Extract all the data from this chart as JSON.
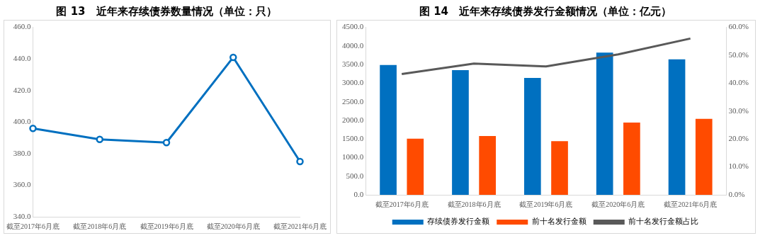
{
  "chart_data": [
    {
      "type": "line",
      "title": "图 13　近年来存续债券数量情况（单位：只）",
      "categories": [
        "截至2017年6月底",
        "截至2018年6月底",
        "截至2019年6月底",
        "截至2020年6月底",
        "截至2021年6月底"
      ],
      "series": [
        {
          "color": "#0070c0",
          "values": [
            396,
            389,
            387,
            441,
            375
          ]
        }
      ],
      "ylim": [
        340,
        460
      ],
      "yticks": [
        {
          "value": 340,
          "label": "340.0"
        },
        {
          "value": 360,
          "label": "360.0"
        },
        {
          "value": 380,
          "label": "380.0"
        },
        {
          "value": 400,
          "label": "400.0"
        },
        {
          "value": 420,
          "label": "420.0"
        },
        {
          "value": 440,
          "label": "440.0"
        },
        {
          "value": 460,
          "label": "460.0"
        }
      ],
      "grid": false,
      "legend": false,
      "marker": "circle"
    },
    {
      "type": "bar",
      "title": "图 14　近年来存续债券发行金额情况（单位：亿元）",
      "categories": [
        "截至2017年6月底",
        "截至2018年6月底",
        "截至2019年6月底",
        "截至2020年6月底",
        "截至2021年6月底"
      ],
      "series": [
        {
          "name": "存续债券发行金额",
          "color": "#0070c0",
          "values": [
            3490,
            3350,
            3140,
            3820,
            3640
          ]
        },
        {
          "name": "前十名发行金额",
          "color": "#ff4b00",
          "values": [
            1510,
            1580,
            1440,
            1940,
            2040
          ]
        },
        {
          "name": "前十名发行金额占比",
          "type": "line",
          "axis": "y2",
          "color": "#595959",
          "values": [
            43.3,
            47.0,
            46.0,
            50.3,
            56.0
          ]
        }
      ],
      "ylim": [
        0,
        4500
      ],
      "yticks": [
        {
          "value": 0,
          "label": "0.0"
        },
        {
          "value": 500,
          "label": "500.0"
        },
        {
          "value": 1000,
          "label": "1000.0"
        },
        {
          "value": 1500,
          "label": "1500.0"
        },
        {
          "value": 2000,
          "label": "2000.0"
        },
        {
          "value": 2500,
          "label": "2500.0"
        },
        {
          "value": 3000,
          "label": "3000.0"
        },
        {
          "value": 3500,
          "label": "3500.0"
        },
        {
          "value": 4000,
          "label": "4000.0"
        },
        {
          "value": 4500,
          "label": "4500.0"
        }
      ],
      "y2lim": [
        0,
        60
      ],
      "y2ticks": [
        {
          "value": 0,
          "label": "0.0%"
        },
        {
          "value": 10,
          "label": "10.0%"
        },
        {
          "value": 20,
          "label": "20.0%"
        },
        {
          "value": 30,
          "label": "30.0%"
        },
        {
          "value": 40,
          "label": "40.0%"
        },
        {
          "value": 50,
          "label": "50.0%"
        },
        {
          "value": 60,
          "label": "60.0%"
        }
      ],
      "grid": false,
      "legend": "bottom"
    }
  ]
}
